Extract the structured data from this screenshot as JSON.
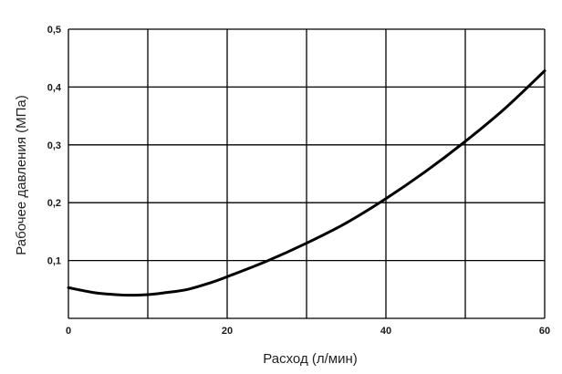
{
  "chart_data": {
    "type": "line",
    "title": "",
    "xlabel": "Расход (л/мин)",
    "ylabel": "Рабочее давления (МПа)",
    "xlim": [
      0,
      60
    ],
    "ylim": [
      0,
      0.5
    ],
    "grid": true,
    "x_ticks": [
      {
        "value": 0,
        "label": "0"
      },
      {
        "value": 20,
        "label": "20"
      },
      {
        "value": 40,
        "label": "40"
      },
      {
        "value": 60,
        "label": "60"
      }
    ],
    "x_grid": [
      0,
      10,
      20,
      30,
      40,
      50,
      60
    ],
    "y_ticks": [
      {
        "value": 0.1,
        "label": "0,1"
      },
      {
        "value": 0.2,
        "label": "0,2"
      },
      {
        "value": 0.3,
        "label": "0,3"
      },
      {
        "value": 0.4,
        "label": "0,4"
      },
      {
        "value": 0.5,
        "label": "0,5"
      }
    ],
    "y_grid": [
      0,
      0.1,
      0.2,
      0.3,
      0.4,
      0.5
    ],
    "series": [
      {
        "color": "#000000",
        "x": [
          0,
          3,
          5,
          7.5,
          10,
          12,
          15,
          18,
          20,
          25,
          30,
          35,
          40,
          45,
          50,
          55,
          60
        ],
        "y": [
          0.053,
          0.045,
          0.042,
          0.04,
          0.041,
          0.044,
          0.05,
          0.062,
          0.072,
          0.099,
          0.13,
          0.165,
          0.207,
          0.254,
          0.306,
          0.363,
          0.428
        ]
      }
    ]
  }
}
